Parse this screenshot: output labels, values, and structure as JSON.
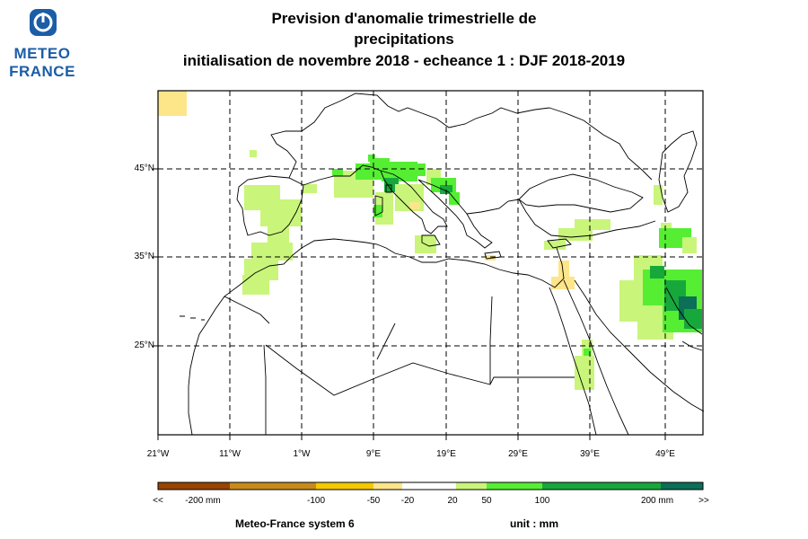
{
  "logo": {
    "line1": "METEO",
    "line2": "FRANCE",
    "icon": "meteo-france-logo-icon"
  },
  "title": {
    "line1": "Prevision d'anomalie trimestrielle de",
    "line2": "precipitations",
    "line3": "initialisation de novembre 2018  -  echeance 1 : DJF 2018-2019"
  },
  "map": {
    "lat_labels": [
      "45°N",
      "35°N",
      "25°N"
    ],
    "lon_labels": [
      "21°W",
      "11°W",
      "1°W",
      "9°E",
      "19°E",
      "29°E",
      "39°E",
      "49°E"
    ],
    "lat_range": [
      15.5,
      54.5
    ],
    "lon_range": [
      -21,
      55
    ],
    "grid": "dashed"
  },
  "colorbar": {
    "labels": [
      "<<",
      "-200 mm",
      "-100",
      "-50",
      "-20",
      "20",
      "50",
      "100",
      "200 mm",
      ">>"
    ],
    "colors": [
      "#994400",
      "#c98a1c",
      "#f5c800",
      "#fde58a",
      "#ffffff",
      "#c9f57a",
      "#55ee33",
      "#17a83c",
      "#0c6f57"
    ]
  },
  "footer": {
    "model": "Meteo-France system 6",
    "unit": "unit :  mm"
  }
}
